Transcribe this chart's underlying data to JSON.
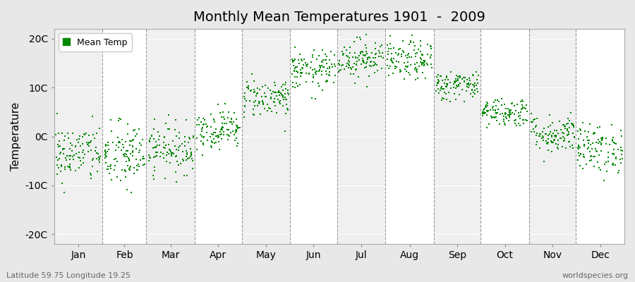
{
  "title": "Monthly Mean Temperatures 1901  -  2009",
  "ylabel": "Temperature",
  "xlabel_labels": [
    "Jan",
    "Feb",
    "Mar",
    "Apr",
    "May",
    "Jun",
    "Jul",
    "Aug",
    "Sep",
    "Oct",
    "Nov",
    "Dec"
  ],
  "ytick_labels": [
    "-20C",
    "-10C",
    "0C",
    "10C",
    "20C"
  ],
  "ytick_values": [
    -20,
    -10,
    0,
    10,
    20
  ],
  "ylim": [
    -22,
    22
  ],
  "fig_bg_color": "#e8e8e8",
  "plot_bg_color": "#ffffff",
  "band_color_odd": "#f0f0f0",
  "band_color_even": "#ffffff",
  "dashed_line_color": "#999999",
  "scatter_color": "#008800",
  "scatter_marker": "s",
  "scatter_size": 3,
  "legend_label": "Mean Temp",
  "footer_left": "Latitude 59.75 Longitude 19.25",
  "footer_right": "worldspecies.org",
  "n_years": 109,
  "monthly_means": [
    -3.5,
    -4.0,
    -2.5,
    1.5,
    8.0,
    13.5,
    16.0,
    15.5,
    10.5,
    5.0,
    0.5,
    -2.5
  ],
  "monthly_stds": [
    3.0,
    3.5,
    2.5,
    2.0,
    2.0,
    2.0,
    2.0,
    2.0,
    1.5,
    1.5,
    2.0,
    2.5
  ]
}
